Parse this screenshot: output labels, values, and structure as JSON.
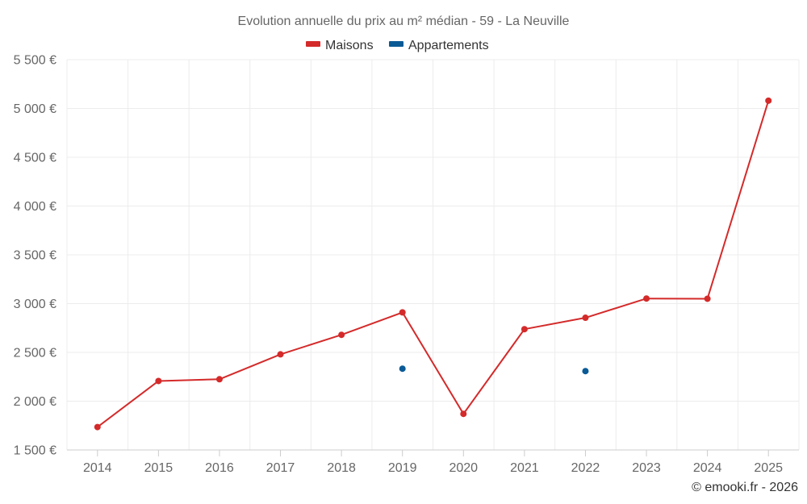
{
  "chart_data": {
    "type": "line",
    "title": "Evolution annuelle du prix au m² médian - 59 - La Neuville",
    "categories": [
      "2014",
      "2015",
      "2016",
      "2017",
      "2018",
      "2019",
      "2020",
      "2021",
      "2022",
      "2023",
      "2024",
      "2025"
    ],
    "series": [
      {
        "name": "Maisons",
        "color": "#d42a2a",
        "values": [
          1735,
          2207,
          2225,
          2480,
          2680,
          2910,
          1870,
          2738,
          2855,
          3052,
          3050,
          5080
        ]
      },
      {
        "name": "Appartements",
        "color": "#0a5a96",
        "values": [
          null,
          null,
          null,
          null,
          null,
          2333,
          null,
          null,
          2308,
          null,
          null,
          null
        ]
      }
    ],
    "y_ticks": [
      1500,
      2000,
      2500,
      3000,
      3500,
      4000,
      4500,
      5000,
      5500
    ],
    "y_tick_labels": [
      "1 500 €",
      "2 000 €",
      "2 500 €",
      "3 000 €",
      "3 500 €",
      "4 000 €",
      "4 500 €",
      "5 000 €",
      "5 500 €"
    ],
    "ylim": [
      1500,
      5500
    ],
    "xlabel": "",
    "ylabel": "",
    "legend_position": "top-center",
    "grid": true
  },
  "credit": "© emooki.fr - 2026"
}
